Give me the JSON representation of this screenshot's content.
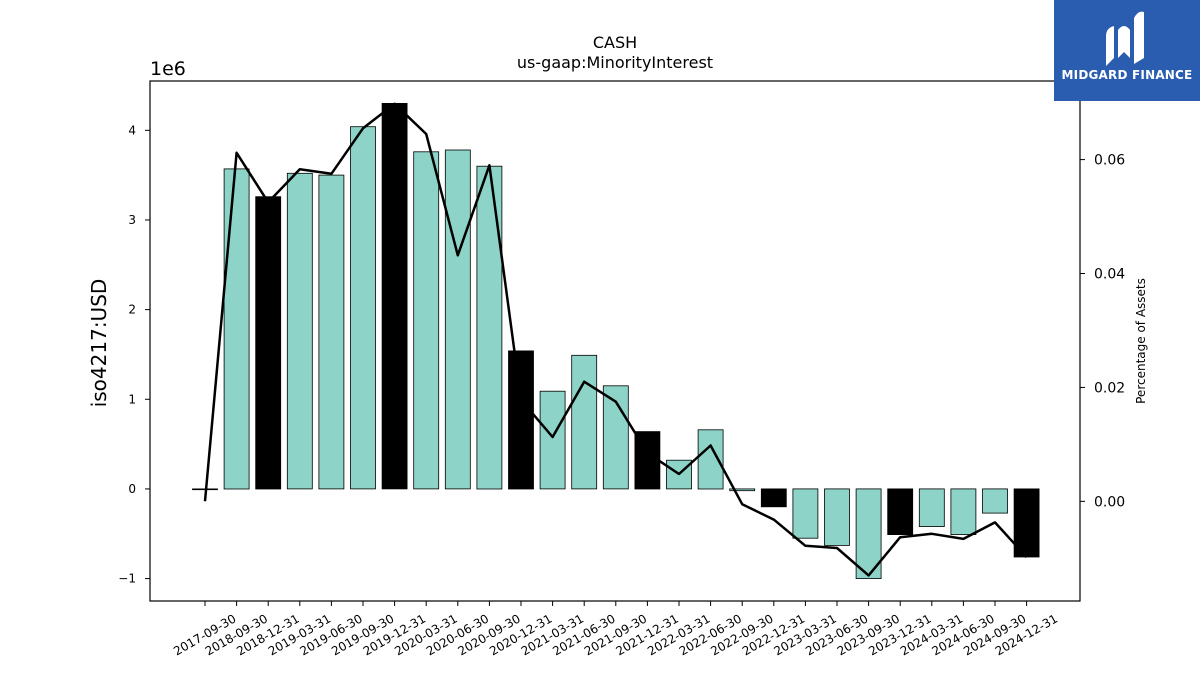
{
  "chart_data": {
    "type": "bar",
    "title": "CASH",
    "subtitle": "us-gaap:MinorityInterest",
    "ylabel": "iso4217:USD",
    "y_scale_label": "1e6",
    "y2label": "Percentage of Assets",
    "ylim": [
      -1250000,
      4550000
    ],
    "y2lim": [
      -0.0175,
      0.0738
    ],
    "yticks": [
      -1,
      0,
      1,
      2,
      3,
      4
    ],
    "y2ticks": [
      "0.00",
      "0.02",
      "0.04",
      "0.06"
    ],
    "y2tick_values": [
      0.0,
      0.02,
      0.04,
      0.06
    ],
    "categories": [
      "2017-09-30",
      "2018-09-30",
      "2018-12-31",
      "2019-03-31",
      "2019-06-30",
      "2019-09-30",
      "2019-12-31",
      "2020-03-31",
      "2020-06-30",
      "2020-09-30",
      "2020-12-31",
      "2021-03-31",
      "2021-06-30",
      "2021-09-30",
      "2021-12-31",
      "2022-03-31",
      "2022-06-30",
      "2022-09-30",
      "2022-12-31",
      "2023-03-31",
      "2023-06-30",
      "2023-09-30",
      "2023-12-31",
      "2024-03-31",
      "2024-06-30",
      "2024-09-30",
      "2024-12-31"
    ],
    "series": [
      {
        "type": "bar",
        "values": [
          0,
          3570000,
          3260000,
          3520000,
          3500000,
          4040000,
          4300000,
          3760000,
          3780000,
          3600000,
          1540000,
          1090000,
          1490000,
          1150000,
          640000,
          320000,
          660000,
          -20000,
          -200000,
          -550000,
          -630000,
          -1000000,
          -510000,
          -420000,
          -510000,
          -270000,
          -760000
        ],
        "highlight": [
          false,
          false,
          true,
          false,
          false,
          false,
          true,
          false,
          false,
          false,
          true,
          false,
          false,
          false,
          true,
          false,
          false,
          false,
          true,
          false,
          false,
          false,
          true,
          false,
          false,
          false,
          true
        ]
      },
      {
        "type": "line",
        "axis": "right",
        "values": [
          0.0,
          0.0612,
          0.0525,
          0.0583,
          0.0575,
          0.0655,
          0.0698,
          0.0645,
          0.0432,
          0.059,
          0.0178,
          0.0113,
          0.021,
          0.0175,
          0.0085,
          0.0048,
          0.0098,
          -0.0005,
          -0.0032,
          -0.0078,
          -0.0082,
          -0.013,
          -0.0063,
          -0.0057,
          -0.0066,
          -0.0037,
          -0.0098
        ]
      }
    ],
    "colors": {
      "bar": "#8dd3c7",
      "highlight_bar": "#000000",
      "line": "#000000"
    }
  },
  "logo": {
    "text": "MIDGARD FINANCE",
    "color": "#2a5db0"
  }
}
